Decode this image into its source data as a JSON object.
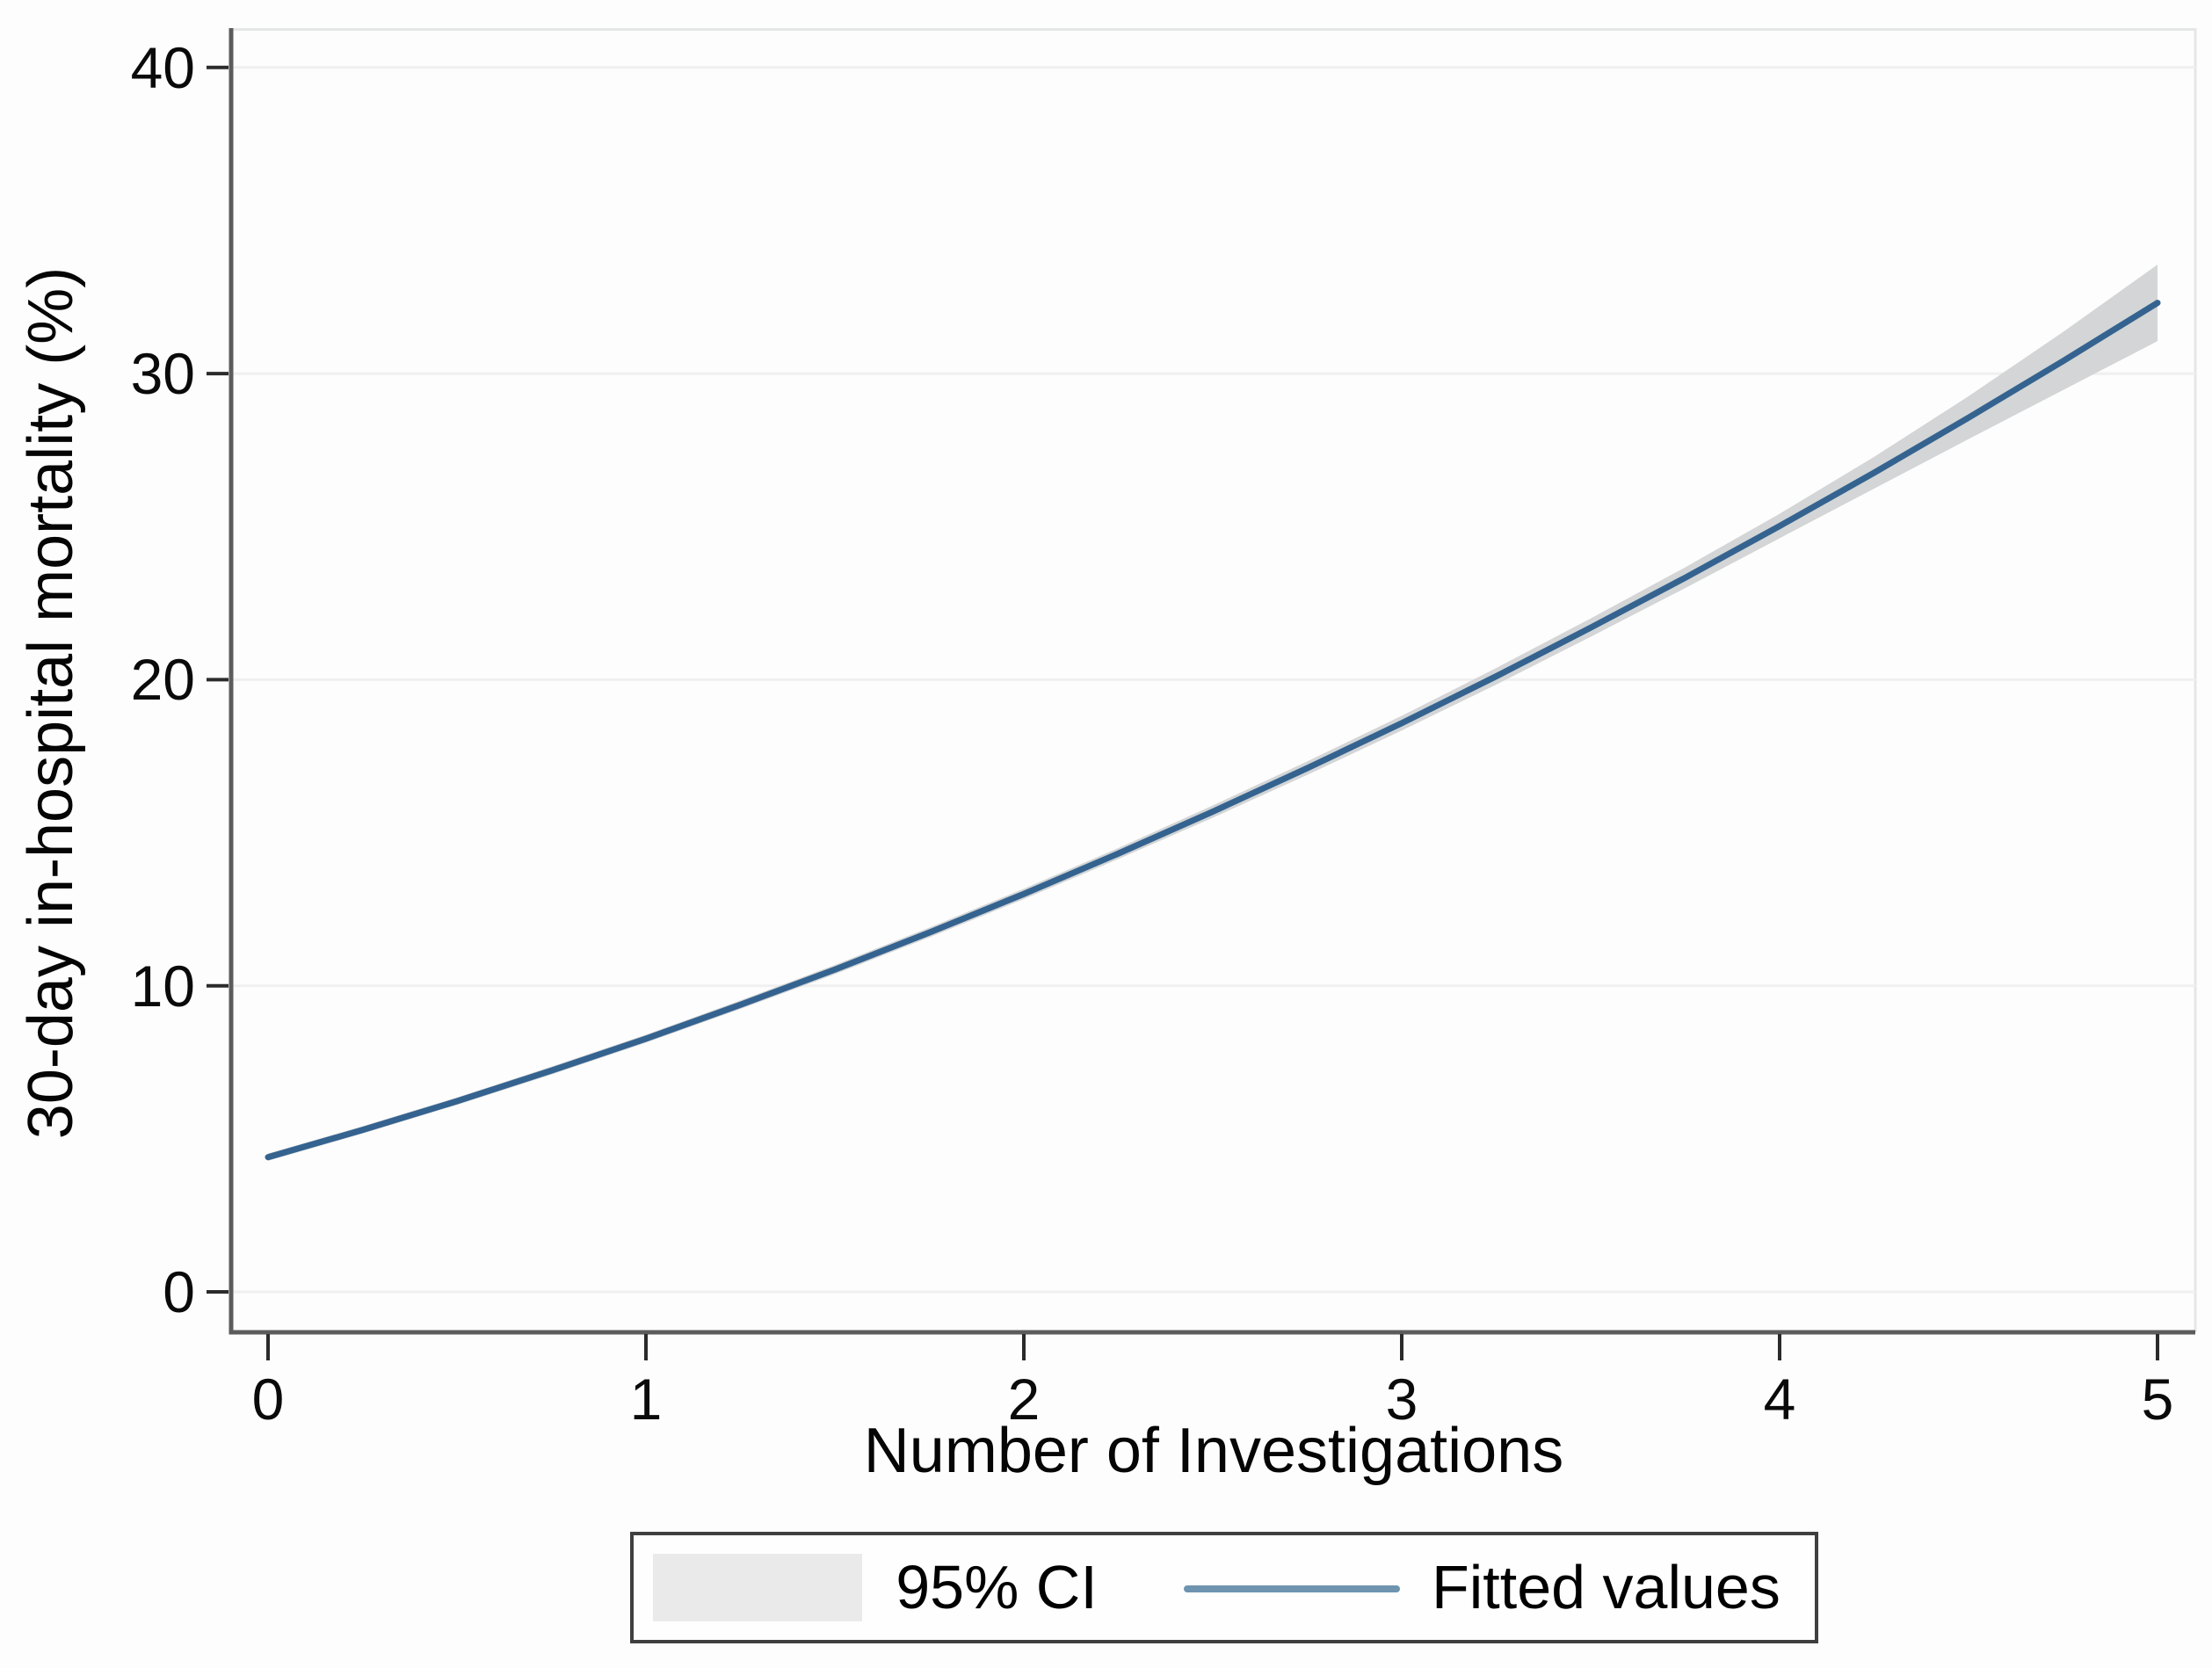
{
  "figure": {
    "background_color": "#fdfdfd",
    "axis_line_color": "#5c5c5c",
    "tick_color": "#2b2b2b",
    "gridline_color": "#f0f0f0",
    "plot_border_color": "#e5e7e7"
  },
  "chart_data": {
    "type": "line",
    "title": "",
    "xlabel": "Number of Investigations",
    "ylabel": "30-day in-hospital mortality (%)",
    "x_ticks": [
      0,
      1,
      2,
      3,
      4,
      5
    ],
    "y_ticks": [
      0,
      10,
      20,
      30,
      40
    ],
    "xlim": [
      -0.1,
      5.1
    ],
    "ylim": [
      -1.3,
      41.3
    ],
    "grid": "horizontal very light gridlines at each y tick",
    "legend_position": "bottom-center, boxed",
    "x": [
      0,
      0.25,
      0.5,
      0.75,
      1,
      1.25,
      1.5,
      1.75,
      2,
      2.25,
      2.5,
      2.75,
      3,
      3.25,
      3.5,
      3.75,
      4,
      4.25,
      4.5,
      4.75,
      5
    ],
    "series": [
      {
        "name": "95% CI",
        "type": "area-band",
        "color": "#d3d5d6",
        "low": [
          4.28,
          5.17,
          6.11,
          7.1,
          8.14,
          9.24,
          10.38,
          11.58,
          12.83,
          14.14,
          15.49,
          16.89,
          18.34,
          19.84,
          21.4,
          22.99,
          24.62,
          26.24,
          27.86,
          29.46,
          31.06
        ],
        "high": [
          4.52,
          5.41,
          6.35,
          7.36,
          8.4,
          9.52,
          10.68,
          11.9,
          13.17,
          14.5,
          15.89,
          17.33,
          18.82,
          20.38,
          22.0,
          23.67,
          25.42,
          27.28,
          29.26,
          31.36,
          33.56
        ]
      },
      {
        "name": "Fitted values",
        "type": "line",
        "color": "#356390",
        "values": [
          4.4,
          5.29,
          6.23,
          7.23,
          8.27,
          9.38,
          10.53,
          11.74,
          13.0,
          14.32,
          15.69,
          17.11,
          18.58,
          20.11,
          21.7,
          23.33,
          25.02,
          26.76,
          28.56,
          30.41,
          32.31
        ]
      }
    ]
  },
  "legend": {
    "ci_label": "95% CI",
    "fit_label": "Fitted values",
    "swatch_color": "#eaeaea",
    "line_sample_color": "#6e94b0",
    "border_color": "#3f3f3f"
  }
}
